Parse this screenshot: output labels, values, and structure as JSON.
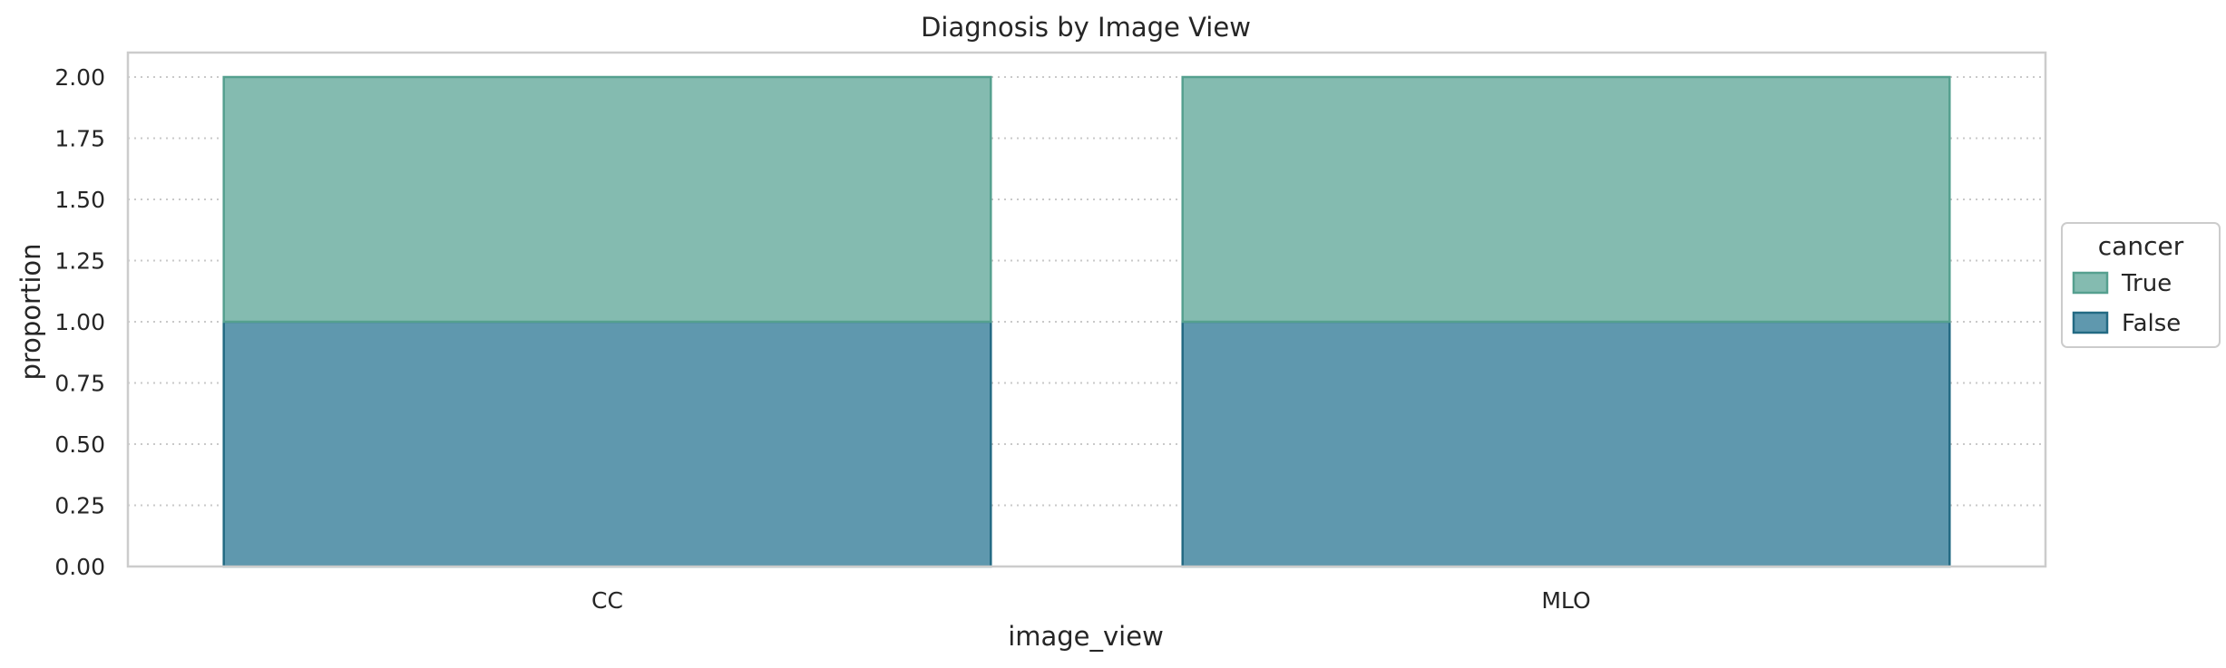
{
  "chart_data": {
    "type": "bar",
    "stacked": true,
    "title": "Diagnosis by Image View",
    "xlabel": "image_view",
    "ylabel": "proportion",
    "categories": [
      "CC",
      "MLO"
    ],
    "series": [
      {
        "name": "False",
        "values": [
          1.0,
          1.0
        ],
        "color": "#5f98ae",
        "edge": "#236a83"
      },
      {
        "name": "True",
        "values": [
          1.0,
          1.0
        ],
        "color": "#84bbb0",
        "edge": "#55a08f"
      }
    ],
    "ylim": [
      0,
      2.1
    ],
    "yticks": [
      "0.00",
      "0.25",
      "0.50",
      "0.75",
      "1.00",
      "1.25",
      "1.50",
      "1.75",
      "2.00"
    ],
    "grid": "horizontal dotted",
    "legend": {
      "title": "cancer",
      "placement": "outside-right",
      "entries": [
        "True",
        "False"
      ]
    }
  }
}
